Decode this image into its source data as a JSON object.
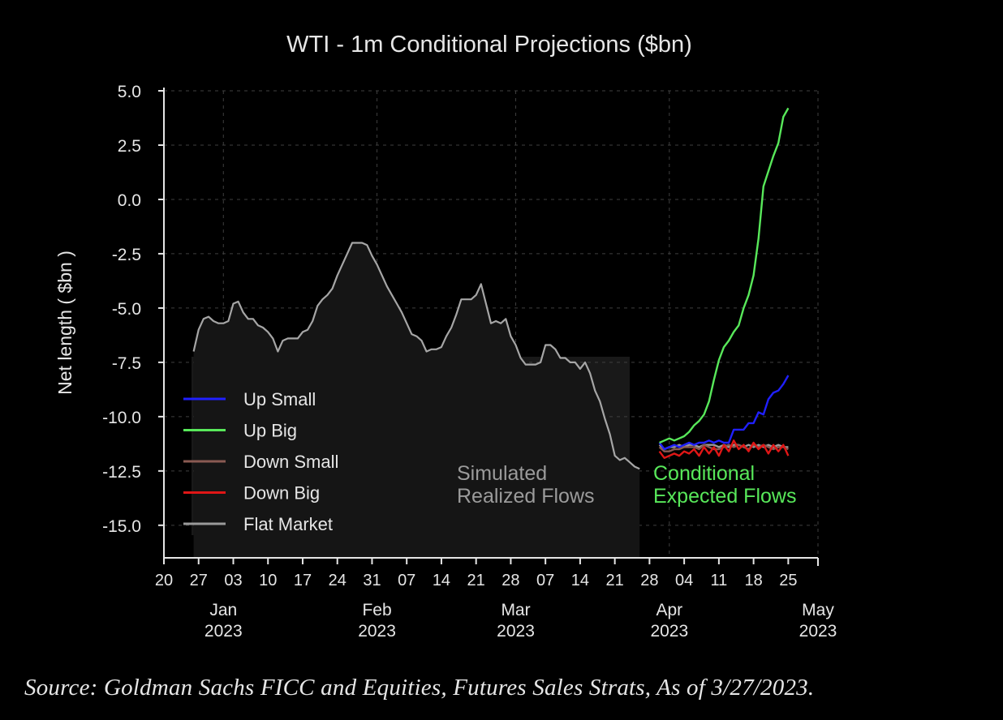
{
  "source_note": "Source: Goldman Sachs FICC and Equities, Futures Sales Strats, As of 3/27/2023.",
  "chart_data": {
    "type": "line",
    "title": "WTI - 1m Conditional Projections ($bn)",
    "xlabel": "",
    "ylabel": "Net length ( $bn )",
    "ylim": [
      -16.5,
      5.0
    ],
    "yticks": [
      5.0,
      2.5,
      0.0,
      -2.5,
      -5.0,
      -7.5,
      -10.0,
      -12.5,
      -15.0
    ],
    "ytick_labels": [
      "5.0",
      "2.5",
      "0.0",
      "-2.5",
      "-5.0",
      "-7.5",
      "-10.0",
      "-12.5",
      "-15.0"
    ],
    "x_unit": "days since 2022-12-20",
    "xlim": [
      0,
      132
    ],
    "xticks": [
      {
        "x": 0,
        "label": "20"
      },
      {
        "x": 7,
        "label": "27"
      },
      {
        "x": 14,
        "label": "03"
      },
      {
        "x": 21,
        "label": "10"
      },
      {
        "x": 28,
        "label": "17"
      },
      {
        "x": 35,
        "label": "24"
      },
      {
        "x": 42,
        "label": "31"
      },
      {
        "x": 49,
        "label": "07"
      },
      {
        "x": 56,
        "label": "14"
      },
      {
        "x": 63,
        "label": "21"
      },
      {
        "x": 70,
        "label": "28"
      },
      {
        "x": 77,
        "label": "07"
      },
      {
        "x": 84,
        "label": "14"
      },
      {
        "x": 91,
        "label": "21"
      },
      {
        "x": 98,
        "label": "28"
      },
      {
        "x": 105,
        "label": "04"
      },
      {
        "x": 112,
        "label": "11"
      },
      {
        "x": 119,
        "label": "18"
      },
      {
        "x": 126,
        "label": "25"
      }
    ],
    "month_labels": [
      {
        "x": 12,
        "month": "Jan",
        "year": "2023"
      },
      {
        "x": 43,
        "month": "Feb",
        "year": "2023"
      },
      {
        "x": 71,
        "month": "Mar",
        "year": "2023"
      },
      {
        "x": 102,
        "month": "Apr",
        "year": "2023"
      },
      {
        "x": 132,
        "month": "May",
        "year": "2023"
      }
    ],
    "grid": true,
    "legend_position": "bottom-left",
    "history": {
      "name": "Simulated Realized Flows (history)",
      "color": "#a6a6a6",
      "x": [
        6,
        7,
        8,
        9,
        10,
        11,
        12,
        13,
        14,
        15,
        16,
        17,
        18,
        19,
        20,
        21,
        22,
        23,
        24,
        25,
        26,
        27,
        28,
        29,
        30,
        31,
        32,
        33,
        34,
        35,
        36,
        37,
        38,
        39,
        40,
        41,
        42,
        43,
        44,
        45,
        46,
        47,
        48,
        49,
        50,
        51,
        52,
        53,
        54,
        55,
        56,
        57,
        58,
        59,
        60,
        61,
        62,
        63,
        64,
        65,
        66,
        67,
        68,
        69,
        70,
        71,
        72,
        73,
        74,
        75,
        76,
        77,
        78,
        79,
        80,
        81,
        82,
        83,
        84,
        85,
        86,
        87,
        88,
        89,
        90,
        91,
        92,
        93,
        94,
        95,
        96
      ],
      "values": [
        -7.0,
        -6.0,
        -5.5,
        -5.4,
        -5.6,
        -5.7,
        -5.7,
        -5.6,
        -4.8,
        -4.7,
        -5.2,
        -5.5,
        -5.5,
        -5.8,
        -5.9,
        -6.1,
        -6.4,
        -7.0,
        -6.5,
        -6.4,
        -6.4,
        -6.4,
        -6.1,
        -6.0,
        -5.6,
        -4.9,
        -4.6,
        -4.4,
        -4.1,
        -3.5,
        -3.0,
        -2.5,
        -2.0,
        -2.0,
        -2.0,
        -2.1,
        -2.6,
        -3.0,
        -3.5,
        -4.0,
        -4.4,
        -4.8,
        -5.2,
        -5.7,
        -6.2,
        -6.3,
        -6.5,
        -7.0,
        -6.9,
        -6.9,
        -6.8,
        -6.3,
        -5.9,
        -5.3,
        -4.6,
        -4.6,
        -4.6,
        -4.4,
        -3.9,
        -4.8,
        -5.7,
        -5.6,
        -5.7,
        -5.5,
        -6.3,
        -6.7,
        -7.3,
        -7.6,
        -7.6,
        -7.6,
        -7.5,
        -6.7,
        -6.7,
        -6.9,
        -7.3,
        -7.3,
        -7.5,
        -7.5,
        -7.8,
        -7.5,
        -8.0,
        -8.8,
        -9.3,
        -10.1,
        -10.8,
        -11.8,
        -12.0,
        -11.9,
        -12.1,
        -12.3,
        -12.4
      ]
    },
    "series": [
      {
        "name": "Up Small",
        "color": "#2020ff",
        "x": [
          100,
          101,
          102,
          103,
          104,
          105,
          106,
          107,
          108,
          109,
          110,
          111,
          112,
          113,
          114,
          115,
          116,
          117,
          118,
          119,
          120,
          121,
          122,
          123,
          124,
          125,
          126
        ],
        "values": [
          -11.2,
          -11.5,
          -11.4,
          -11.3,
          -11.4,
          -11.3,
          -11.2,
          -11.3,
          -11.2,
          -11.2,
          -11.1,
          -11.2,
          -11.1,
          -11.2,
          -11.2,
          -10.6,
          -10.6,
          -10.6,
          -10.3,
          -10.3,
          -9.8,
          -9.9,
          -9.2,
          -8.9,
          -8.8,
          -8.5,
          -8.1
        ]
      },
      {
        "name": "Up Big",
        "color": "#58e85a",
        "x": [
          100,
          101,
          102,
          103,
          104,
          105,
          106,
          107,
          108,
          109,
          110,
          111,
          112,
          113,
          114,
          115,
          116,
          117,
          118,
          119,
          120,
          121,
          122,
          123,
          124,
          125,
          126
        ],
        "values": [
          -11.2,
          -11.1,
          -11.0,
          -11.1,
          -11.0,
          -10.9,
          -10.7,
          -10.4,
          -10.2,
          -9.9,
          -9.3,
          -8.3,
          -7.4,
          -6.8,
          -6.5,
          -6.1,
          -5.8,
          -5.0,
          -4.4,
          -3.5,
          -1.8,
          0.6,
          1.3,
          2.0,
          2.6,
          3.8,
          4.2
        ]
      },
      {
        "name": "Down Small",
        "color": "#8a5a52",
        "x": [
          100,
          101,
          102,
          103,
          104,
          105,
          106,
          107,
          108,
          109,
          110,
          111,
          112,
          113,
          114,
          115,
          116,
          117,
          118,
          119,
          120,
          121,
          122,
          123,
          124,
          125,
          126
        ],
        "values": [
          -11.4,
          -11.6,
          -11.6,
          -11.5,
          -11.5,
          -11.4,
          -11.4,
          -11.4,
          -11.5,
          -11.3,
          -11.4,
          -11.5,
          -11.5,
          -11.4,
          -11.3,
          -11.4,
          -11.3,
          -11.4,
          -11.5,
          -11.3,
          -11.4,
          -11.3,
          -11.4,
          -11.5,
          -11.4,
          -11.4,
          -11.5
        ]
      },
      {
        "name": "Down Big",
        "color": "#e01616",
        "x": [
          100,
          101,
          102,
          103,
          104,
          105,
          106,
          107,
          108,
          109,
          110,
          111,
          112,
          113,
          114,
          115,
          116,
          117,
          118,
          119,
          120,
          121,
          122,
          123,
          124,
          125,
          126
        ],
        "values": [
          -11.6,
          -11.9,
          -11.8,
          -11.7,
          -11.8,
          -11.6,
          -11.7,
          -11.5,
          -11.8,
          -11.4,
          -11.7,
          -11.4,
          -11.8,
          -11.3,
          -11.6,
          -11.1,
          -11.5,
          -11.3,
          -11.6,
          -11.2,
          -11.5,
          -11.3,
          -11.7,
          -11.3,
          -11.6,
          -11.3,
          -11.8
        ]
      },
      {
        "name": "Flat Market",
        "color": "#9a9a9a",
        "x": [
          100,
          101,
          102,
          103,
          104,
          105,
          106,
          107,
          108,
          109,
          110,
          111,
          112,
          113,
          114,
          115,
          116,
          117,
          118,
          119,
          120,
          121,
          122,
          123,
          124,
          125,
          126
        ],
        "values": [
          -11.3,
          -11.5,
          -11.4,
          -11.4,
          -11.3,
          -11.4,
          -11.3,
          -11.3,
          -11.4,
          -11.3,
          -11.3,
          -11.3,
          -11.4,
          -11.3,
          -11.4,
          -11.3,
          -11.3,
          -11.4,
          -11.3,
          -11.4,
          -11.3,
          -11.4,
          -11.3,
          -11.4,
          -11.3,
          -11.4,
          -11.4
        ]
      }
    ],
    "annotations": [
      {
        "lines": [
          "Simulated",
          "Realized Flows"
        ],
        "color": "#9b9b9b"
      },
      {
        "lines": [
          "Conditional",
          "Expected Flows"
        ],
        "color": "#58e85a"
      }
    ]
  }
}
